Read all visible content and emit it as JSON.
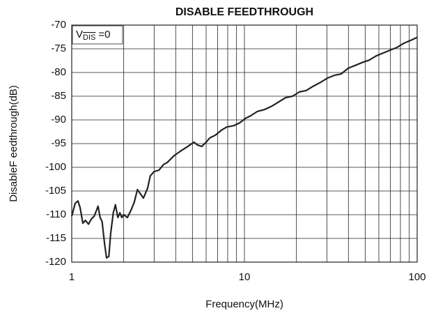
{
  "chart_data": {
    "type": "line",
    "title": "DISABLE FEEDTHROUGH",
    "x_label": "Frequency(MHz)",
    "y_label": "DisableF eedthrough(dB)",
    "annotation": {
      "text": "V",
      "subscript": "DIS",
      "suffix": "=0"
    },
    "log_x": true,
    "grid": true,
    "color": "#222",
    "xlim": [
      1,
      100
    ],
    "xticks": [
      1,
      10,
      100
    ],
    "ylim": [
      -120,
      -70
    ],
    "yticks": [
      -120,
      -115,
      -110,
      -105,
      -100,
      -95,
      -90,
      -85,
      -80,
      -75,
      -70
    ],
    "series": [
      {
        "name": "Disable feedthrough",
        "x": [
          1,
          1.047,
          1.087,
          1.118,
          1.16,
          1.2,
          1.25,
          1.3,
          1.35,
          1.4,
          1.42,
          1.46,
          1.5,
          1.55,
          1.59,
          1.64,
          1.68,
          1.74,
          1.79,
          1.85,
          1.9,
          1.95,
          2.0,
          2.1,
          2.2,
          2.3,
          2.4,
          2.5,
          2.6,
          2.75,
          2.85,
          3.0,
          3.2,
          3.4,
          3.57,
          3.9,
          4.3,
          4.7,
          5.1,
          5.35,
          5.66,
          6.0,
          6.3,
          6.8,
          7.4,
          7.9,
          8.7,
          9.4,
          10.1,
          10.9,
          11.9,
          13.1,
          14.4,
          15.8,
          17.3,
          19,
          20.8,
          22.8,
          25,
          27.5,
          30.2,
          33.1,
          36.3,
          39.9,
          43.8,
          48,
          52.7,
          57.9,
          63.5,
          69.7,
          76.5,
          84,
          92,
          100
        ],
        "values": [
          -110.3,
          -107.6,
          -107.1,
          -108.5,
          -111.8,
          -111.2,
          -112,
          -110.9,
          -110.3,
          -108.8,
          -108.2,
          -110.6,
          -111.5,
          -116.2,
          -119.1,
          -118.8,
          -114,
          -109.6,
          -107.9,
          -110.6,
          -109.6,
          -110.6,
          -110,
          -110.6,
          -109.1,
          -107.4,
          -104.7,
          -105.6,
          -106.5,
          -104.4,
          -101.8,
          -100.9,
          -100.6,
          -99.4,
          -99,
          -97.6,
          -96.5,
          -95.6,
          -94.7,
          -95.3,
          -95.6,
          -94.7,
          -93.8,
          -93.2,
          -92.1,
          -91.5,
          -91.2,
          -90.6,
          -89.7,
          -89.1,
          -88.2,
          -87.8,
          -87.1,
          -86.2,
          -85.3,
          -85,
          -84.1,
          -83.8,
          -82.9,
          -82.1,
          -81.2,
          -80.6,
          -80.3,
          -79.1,
          -78.5,
          -77.9,
          -77.4,
          -76.5,
          -75.9,
          -75.3,
          -74.7,
          -73.8,
          -73.2,
          -72.6
        ]
      }
    ]
  }
}
